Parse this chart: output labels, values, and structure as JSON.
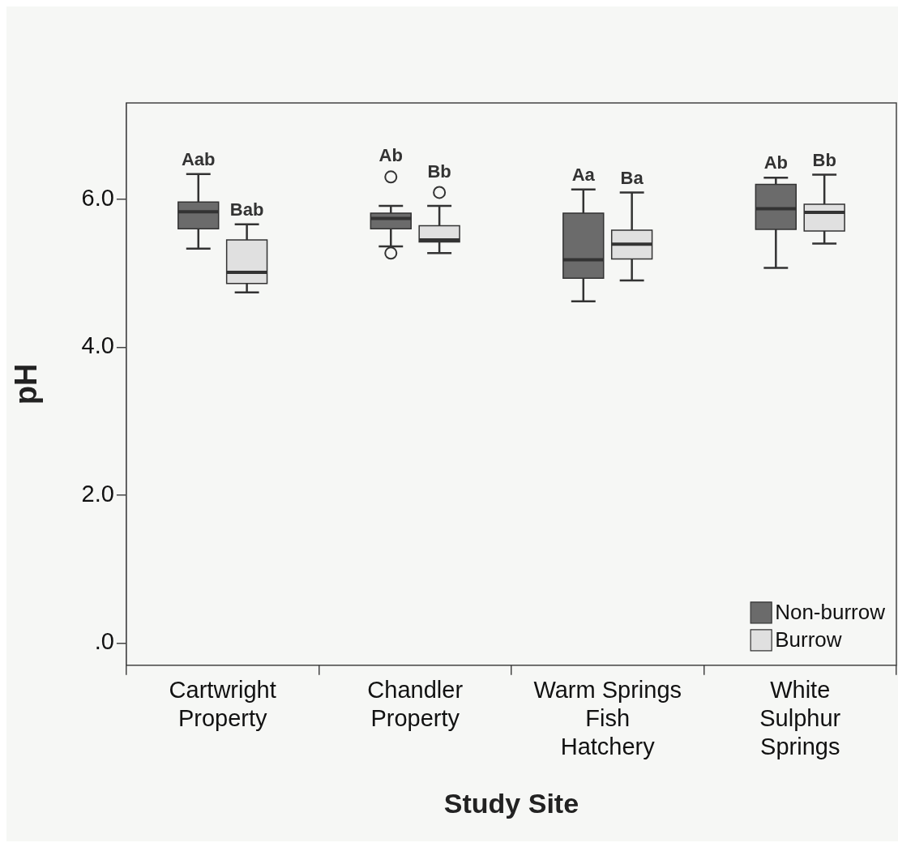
{
  "chart_data": {
    "type": "box",
    "xlabel": "Study Site",
    "ylabel": "pH",
    "categories": [
      "Cartwright Property",
      "Chandler Property",
      "Warm Springs Fish Hatchery",
      "White Sulphur Springs"
    ],
    "ylim": [
      -0.3,
      7.3
    ],
    "yticks": [
      {
        "value": 0,
        "label": ".0"
      },
      {
        "value": 2,
        "label": "2.0"
      },
      {
        "value": 4,
        "label": "4.0"
      },
      {
        "value": 6,
        "label": "6.0"
      }
    ],
    "grid": false,
    "legend": "bottom right",
    "series": [
      {
        "name": "Non-burrow",
        "color": "#6b6b6b",
        "boxes": [
          {
            "low": 5.33,
            "q1": 5.6,
            "median": 5.83,
            "q3": 5.96,
            "high": 6.34
          },
          {
            "low": 5.36,
            "q1": 5.6,
            "median": 5.74,
            "q3": 5.81,
            "high": 5.91,
            "outliers": [
              6.3,
              5.27
            ]
          },
          {
            "low": 4.62,
            "q1": 4.93,
            "median": 5.18,
            "q3": 5.81,
            "high": 6.13
          },
          {
            "low": 5.07,
            "q1": 5.59,
            "median": 5.87,
            "q3": 6.2,
            "high": 6.29
          }
        ]
      },
      {
        "name": "Burrow",
        "color": "#e0e0e0",
        "boxes": [
          {
            "low": 4.74,
            "q1": 4.86,
            "median": 5.01,
            "q3": 5.45,
            "high": 5.66
          },
          {
            "low": 5.27,
            "q1": 5.42,
            "median": 5.45,
            "q3": 5.64,
            "high": 5.91,
            "outliers": [
              6.09
            ]
          },
          {
            "low": 4.9,
            "q1": 5.19,
            "median": 5.39,
            "q3": 5.58,
            "high": 6.09
          },
          {
            "low": 5.4,
            "q1": 5.57,
            "median": 5.82,
            "q3": 5.93,
            "high": 6.33
          }
        ]
      }
    ],
    "annotations": [
      "Aab",
      "Bab",
      "Ab",
      "Bb",
      "Aa",
      "Ba",
      "Ab",
      "Bb"
    ]
  }
}
